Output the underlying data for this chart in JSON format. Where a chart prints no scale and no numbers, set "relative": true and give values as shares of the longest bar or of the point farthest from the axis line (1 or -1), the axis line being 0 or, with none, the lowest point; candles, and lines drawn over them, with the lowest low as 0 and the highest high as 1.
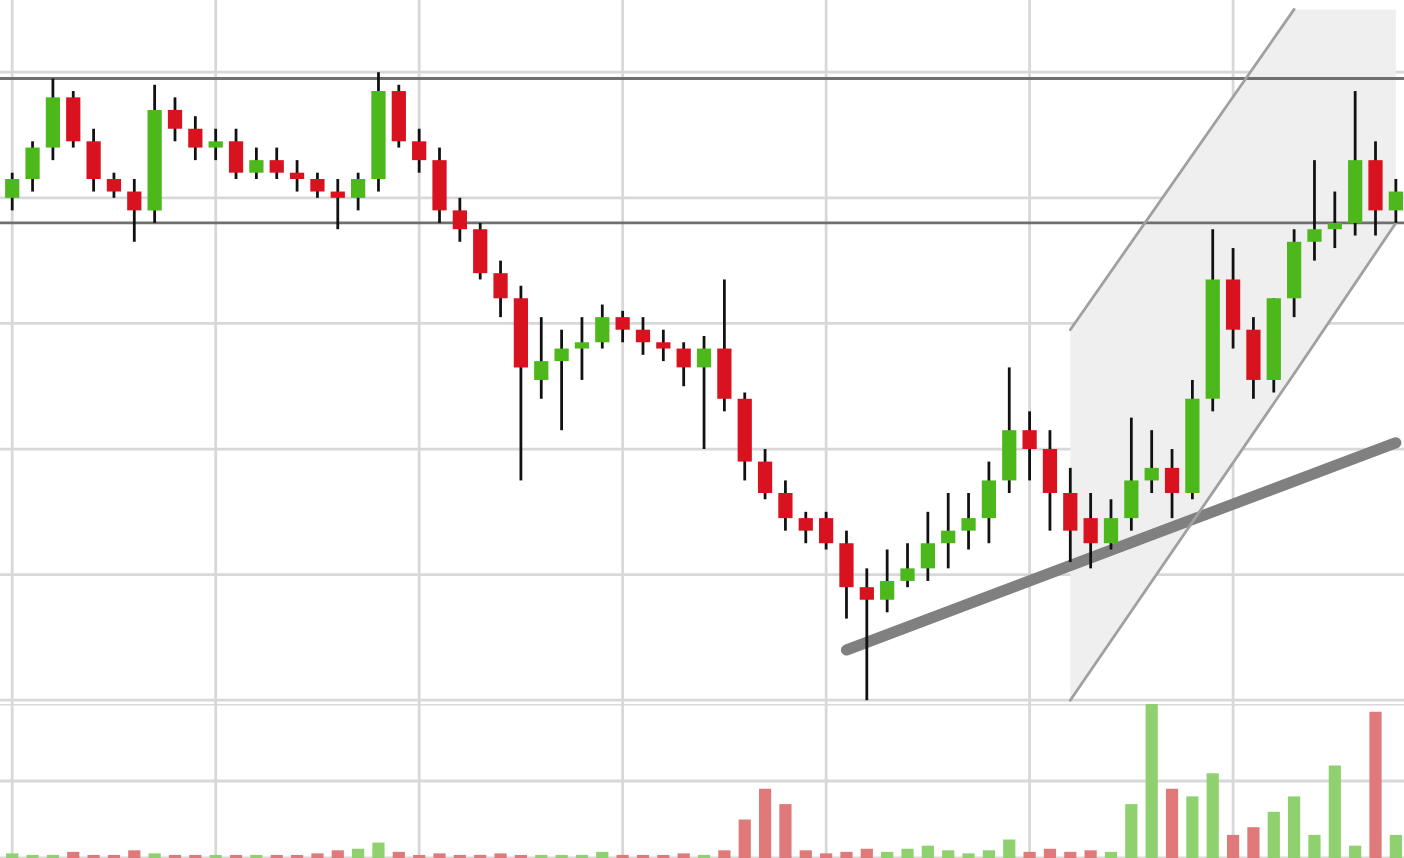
{
  "chart_data": [
    {
      "type": "candlestick",
      "relative": true,
      "grid": true,
      "categories": [
        null,
        null,
        null,
        null,
        null,
        null,
        null,
        null,
        null,
        null,
        null,
        null,
        null,
        null,
        null,
        null,
        null,
        null,
        null,
        null,
        null,
        null,
        null,
        null,
        null,
        null,
        null,
        null,
        null,
        null,
        null,
        null,
        null,
        null,
        null,
        null,
        null,
        null,
        null,
        null,
        null,
        null,
        null,
        null,
        null,
        null,
        null,
        null,
        null,
        null,
        null,
        null,
        null,
        null,
        null,
        null,
        null,
        null,
        null,
        null,
        null,
        null,
        null,
        null,
        null,
        null,
        null,
        null,
        null
      ],
      "ohlc": [
        [
          0.8,
          0.84,
          0.78,
          0.83
        ],
        [
          0.83,
          0.89,
          0.81,
          0.88
        ],
        [
          0.88,
          0.99,
          0.86,
          0.96
        ],
        [
          0.96,
          0.97,
          0.88,
          0.89
        ],
        [
          0.89,
          0.91,
          0.81,
          0.83
        ],
        [
          0.83,
          0.84,
          0.8,
          0.81
        ],
        [
          0.81,
          0.83,
          0.73,
          0.78
        ],
        [
          0.78,
          0.98,
          0.76,
          0.94
        ],
        [
          0.94,
          0.96,
          0.89,
          0.91
        ],
        [
          0.91,
          0.93,
          0.86,
          0.88
        ],
        [
          0.88,
          0.91,
          0.86,
          0.89
        ],
        [
          0.89,
          0.91,
          0.83,
          0.84
        ],
        [
          0.84,
          0.88,
          0.83,
          0.86
        ],
        [
          0.86,
          0.88,
          0.83,
          0.84
        ],
        [
          0.84,
          0.86,
          0.81,
          0.83
        ],
        [
          0.83,
          0.84,
          0.8,
          0.81
        ],
        [
          0.81,
          0.83,
          0.75,
          0.8
        ],
        [
          0.8,
          0.84,
          0.78,
          0.83
        ],
        [
          0.83,
          1.0,
          0.81,
          0.97
        ],
        [
          0.97,
          0.98,
          0.88,
          0.89
        ],
        [
          0.89,
          0.91,
          0.84,
          0.86
        ],
        [
          0.86,
          0.88,
          0.76,
          0.78
        ],
        [
          0.78,
          0.8,
          0.73,
          0.75
        ],
        [
          0.75,
          0.76,
          0.67,
          0.68
        ],
        [
          0.68,
          0.7,
          0.61,
          0.64
        ],
        [
          0.64,
          0.66,
          0.35,
          0.53
        ],
        [
          0.51,
          0.61,
          0.48,
          0.54
        ],
        [
          0.54,
          0.59,
          0.43,
          0.56
        ],
        [
          0.56,
          0.61,
          0.51,
          0.57
        ],
        [
          0.57,
          0.63,
          0.56,
          0.61
        ],
        [
          0.61,
          0.62,
          0.57,
          0.59
        ],
        [
          0.59,
          0.61,
          0.55,
          0.57
        ],
        [
          0.57,
          0.59,
          0.54,
          0.56
        ],
        [
          0.56,
          0.57,
          0.5,
          0.53
        ],
        [
          0.53,
          0.58,
          0.4,
          0.56
        ],
        [
          0.56,
          0.67,
          0.46,
          0.48
        ],
        [
          0.48,
          0.49,
          0.35,
          0.38
        ],
        [
          0.38,
          0.4,
          0.32,
          0.33
        ],
        [
          0.33,
          0.35,
          0.27,
          0.29
        ],
        [
          0.29,
          0.3,
          0.25,
          0.27
        ],
        [
          0.29,
          0.3,
          0.24,
          0.25
        ],
        [
          0.25,
          0.27,
          0.13,
          0.18
        ],
        [
          0.18,
          0.21,
          0.0,
          0.16
        ],
        [
          0.16,
          0.24,
          0.14,
          0.19
        ],
        [
          0.19,
          0.25,
          0.18,
          0.21
        ],
        [
          0.21,
          0.3,
          0.19,
          0.25
        ],
        [
          0.25,
          0.33,
          0.21,
          0.27
        ],
        [
          0.27,
          0.33,
          0.24,
          0.29
        ],
        [
          0.29,
          0.38,
          0.25,
          0.35
        ],
        [
          0.35,
          0.53,
          0.33,
          0.43
        ],
        [
          0.43,
          0.46,
          0.35,
          0.4
        ],
        [
          0.4,
          0.43,
          0.27,
          0.33
        ],
        [
          0.33,
          0.37,
          0.22,
          0.27
        ],
        [
          0.29,
          0.33,
          0.21,
          0.25
        ],
        [
          0.25,
          0.32,
          0.24,
          0.29
        ],
        [
          0.29,
          0.45,
          0.27,
          0.35
        ],
        [
          0.35,
          0.43,
          0.33,
          0.37
        ],
        [
          0.37,
          0.4,
          0.29,
          0.33
        ],
        [
          0.33,
          0.51,
          0.32,
          0.48
        ],
        [
          0.48,
          0.75,
          0.46,
          0.67
        ],
        [
          0.67,
          0.72,
          0.56,
          0.59
        ],
        [
          0.59,
          0.61,
          0.48,
          0.51
        ],
        [
          0.51,
          0.64,
          0.49,
          0.64
        ],
        [
          0.64,
          0.75,
          0.61,
          0.73
        ],
        [
          0.73,
          0.86,
          0.7,
          0.75
        ],
        [
          0.75,
          0.81,
          0.72,
          0.76
        ],
        [
          0.76,
          0.97,
          0.74,
          0.86
        ],
        [
          0.86,
          0.89,
          0.74,
          0.78
        ],
        [
          0.78,
          0.83,
          0.76,
          0.81
        ]
      ],
      "colors": [
        "#4cb81c",
        "#4cb81c",
        "#4cb81c",
        "#d9121f",
        "#d9121f",
        "#d9121f",
        "#d9121f",
        "#4cb81c",
        "#d9121f",
        "#d9121f",
        "#4cb81c",
        "#d9121f",
        "#4cb81c",
        "#d9121f",
        "#d9121f",
        "#d9121f",
        "#d9121f",
        "#4cb81c",
        "#4cb81c",
        "#d9121f",
        "#d9121f",
        "#d9121f",
        "#d9121f",
        "#d9121f",
        "#d9121f",
        "#d9121f",
        "#4cb81c",
        "#4cb81c",
        "#4cb81c",
        "#4cb81c",
        "#d9121f",
        "#d9121f",
        "#d9121f",
        "#d9121f",
        "#4cb81c",
        "#d9121f",
        "#d9121f",
        "#d9121f",
        "#d9121f",
        "#d9121f",
        "#d9121f",
        "#d9121f",
        "#d9121f",
        "#4cb81c",
        "#4cb81c",
        "#4cb81c",
        "#4cb81c",
        "#4cb81c",
        "#4cb81c",
        "#4cb81c",
        "#d9121f",
        "#d9121f",
        "#d9121f",
        "#d9121f",
        "#4cb81c",
        "#4cb81c",
        "#4cb81c",
        "#d9121f",
        "#4cb81c",
        "#4cb81c",
        "#d9121f",
        "#d9121f",
        "#4cb81c",
        "#4cb81c",
        "#4cb81c",
        "#4cb81c",
        "#4cb81c",
        "#d9121f",
        "#4cb81c"
      ],
      "series": [
        {
          "type": "line",
          "color": "#808080",
          "values": [
            null,
            null,
            null,
            null,
            null,
            null,
            null,
            null,
            null,
            null,
            null,
            null,
            null,
            null,
            null,
            null,
            null,
            null,
            null,
            null,
            null,
            null,
            null,
            null,
            null,
            null,
            null,
            null,
            null,
            null,
            null,
            null,
            null,
            null,
            null,
            null,
            null,
            null,
            null,
            null,
            null,
            0.08,
            null,
            null,
            null,
            null,
            null,
            null,
            null,
            null,
            null,
            null,
            null,
            null,
            null,
            null,
            null,
            null,
            null,
            null,
            null,
            null,
            null,
            null,
            null,
            null,
            null,
            null,
            0.41
          ]
        },
        {
          "type": "line",
          "color": "#a0a0a0",
          "values": [
            null,
            null,
            null,
            null,
            null,
            null,
            null,
            null,
            null,
            null,
            null,
            null,
            null,
            null,
            null,
            null,
            null,
            null,
            null,
            null,
            null,
            null,
            null,
            null,
            null,
            null,
            null,
            null,
            null,
            null,
            null,
            null,
            null,
            null,
            null,
            null,
            null,
            null,
            null,
            null,
            null,
            null,
            null,
            null,
            null,
            null,
            null,
            null,
            null,
            null,
            null,
            null,
            0.0,
            null,
            null,
            null,
            null,
            null,
            null,
            null,
            null,
            null,
            null,
            0.52,
            null,
            null,
            null,
            null,
            0.76
          ],
          "lower": [
            null,
            null,
            null,
            null,
            null,
            null,
            null,
            null,
            null,
            null,
            null,
            null,
            null,
            null,
            null,
            null,
            null,
            null,
            null,
            null,
            null,
            null,
            null,
            null,
            null,
            null,
            null,
            null,
            null,
            null,
            null,
            null,
            null,
            null,
            null,
            null,
            null,
            null,
            null,
            null,
            null,
            null,
            null,
            null,
            null,
            null,
            null,
            null,
            null,
            null,
            null,
            null,
            0.0,
            null,
            null,
            null,
            null,
            null,
            null,
            null,
            null,
            null,
            null,
            0.52,
            null,
            null,
            null,
            null,
            0.76
          ],
          "upper": [
            null,
            null,
            null,
            null,
            null,
            null,
            null,
            null,
            null,
            null,
            null,
            null,
            null,
            null,
            null,
            null,
            null,
            null,
            null,
            null,
            null,
            null,
            null,
            null,
            null,
            null,
            null,
            null,
            null,
            null,
            null,
            null,
            null,
            null,
            null,
            null,
            null,
            null,
            null,
            null,
            null,
            null,
            null,
            null,
            null,
            null,
            null,
            null,
            null,
            null,
            null,
            null,
            0.59,
            null,
            null,
            null,
            null,
            null,
            null,
            null,
            null,
            null,
            null,
            1.1,
            null,
            null,
            null,
            null,
            1.1
          ]
        },
        {
          "type": "line",
          "color": "#a0a0a0",
          "values": [
            null,
            null,
            null,
            null,
            null,
            null,
            null,
            null,
            null,
            null,
            null,
            null,
            null,
            null,
            null,
            null,
            null,
            null,
            null,
            null,
            null,
            null,
            null,
            null,
            null,
            null,
            null,
            null,
            null,
            null,
            null,
            null,
            null,
            null,
            null,
            null,
            null,
            null,
            null,
            null,
            null,
            null,
            null,
            null,
            null,
            null,
            null,
            null,
            null,
            null,
            null,
            null,
            0.59,
            null,
            null,
            null,
            null,
            null,
            null,
            null,
            null,
            null,
            null,
            1.1,
            null,
            null,
            null,
            null,
            null
          ]
        }
      ],
      "ref_lines": [
        {
          "axis": "y",
          "value": 0.99,
          "color": "#707070"
        },
        {
          "axis": "y",
          "value": 0.76,
          "color": "#707070"
        }
      ]
    },
    {
      "type": "bar",
      "relative": true,
      "grid": true,
      "categories": [
        null,
        null,
        null,
        null,
        null,
        null,
        null,
        null,
        null,
        null,
        null,
        null,
        null,
        null,
        null,
        null,
        null,
        null,
        null,
        null,
        null,
        null,
        null,
        null,
        null,
        null,
        null,
        null,
        null,
        null,
        null,
        null,
        null,
        null,
        null,
        null,
        null,
        null,
        null,
        null,
        null,
        null,
        null,
        null,
        null,
        null,
        null,
        null,
        null,
        null,
        null,
        null,
        null,
        null,
        null,
        null,
        null,
        null,
        null,
        null,
        null,
        null,
        null,
        null,
        null,
        null,
        null,
        null,
        null
      ],
      "values": [
        0.03,
        0.02,
        0.02,
        0.04,
        0.02,
        0.02,
        0.05,
        0.03,
        0.02,
        0.02,
        0.02,
        0.02,
        0.02,
        0.02,
        0.02,
        0.03,
        0.05,
        0.06,
        0.1,
        0.04,
        0.02,
        0.03,
        0.02,
        0.02,
        0.03,
        0.02,
        0.02,
        0.02,
        0.02,
        0.04,
        0.02,
        0.02,
        0.02,
        0.03,
        0.02,
        0.05,
        0.25,
        0.45,
        0.35,
        0.05,
        0.03,
        0.04,
        0.06,
        0.04,
        0.06,
        0.08,
        0.05,
        0.03,
        0.05,
        0.12,
        0.04,
        0.06,
        0.04,
        0.05,
        0.04,
        0.35,
        1.0,
        0.45,
        0.4,
        0.55,
        0.15,
        0.2,
        0.3,
        0.4,
        0.15,
        0.6,
        0.08,
        0.95,
        0.15
      ],
      "colors": [
        "#8fd16f",
        "#8fd16f",
        "#8fd16f",
        "#e07a7a",
        "#e07a7a",
        "#e07a7a",
        "#e07a7a",
        "#8fd16f",
        "#e07a7a",
        "#e07a7a",
        "#8fd16f",
        "#e07a7a",
        "#8fd16f",
        "#e07a7a",
        "#e07a7a",
        "#e07a7a",
        "#e07a7a",
        "#8fd16f",
        "#8fd16f",
        "#e07a7a",
        "#e07a7a",
        "#e07a7a",
        "#e07a7a",
        "#e07a7a",
        "#e07a7a",
        "#e07a7a",
        "#8fd16f",
        "#8fd16f",
        "#8fd16f",
        "#8fd16f",
        "#e07a7a",
        "#e07a7a",
        "#e07a7a",
        "#e07a7a",
        "#8fd16f",
        "#e07a7a",
        "#e07a7a",
        "#e07a7a",
        "#e07a7a",
        "#e07a7a",
        "#e07a7a",
        "#e07a7a",
        "#e07a7a",
        "#8fd16f",
        "#8fd16f",
        "#8fd16f",
        "#8fd16f",
        "#8fd16f",
        "#8fd16f",
        "#8fd16f",
        "#e07a7a",
        "#e07a7a",
        "#e07a7a",
        "#e07a7a",
        "#8fd16f",
        "#8fd16f",
        "#8fd16f",
        "#e07a7a",
        "#8fd16f",
        "#8fd16f",
        "#e07a7a",
        "#e07a7a",
        "#8fd16f",
        "#8fd16f",
        "#8fd16f",
        "#8fd16f",
        "#8fd16f",
        "#e07a7a",
        "#8fd16f"
      ]
    }
  ]
}
